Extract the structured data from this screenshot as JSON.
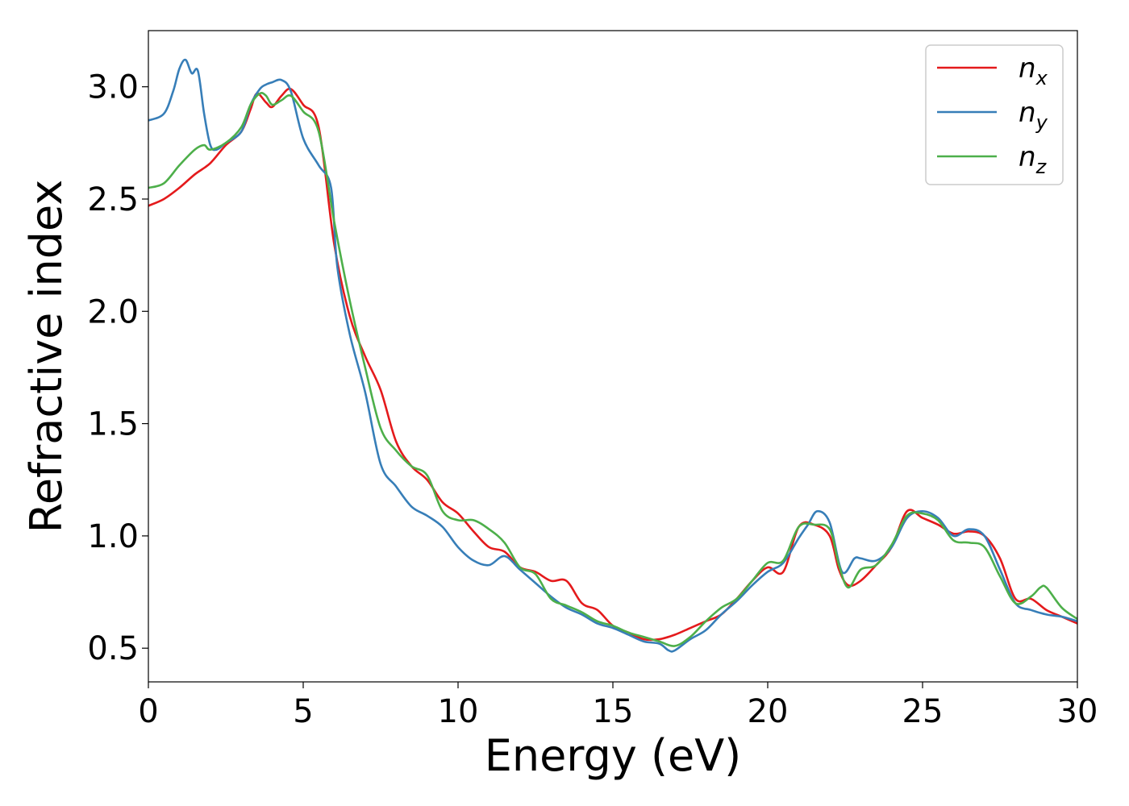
{
  "chart_data": {
    "type": "line",
    "xlabel": "Energy (eV)",
    "ylabel": "Refractive index",
    "xlim": [
      0,
      30
    ],
    "ylim": [
      0.35,
      3.25
    ],
    "xticks": [
      0,
      5,
      10,
      15,
      20,
      25,
      30
    ],
    "yticks": [
      0.5,
      1.0,
      1.5,
      2.0,
      2.5,
      3.0
    ],
    "xtick_labels": [
      "0",
      "5",
      "10",
      "15",
      "20",
      "25",
      "30"
    ],
    "ytick_labels": [
      "0.5",
      "1.0",
      "1.5",
      "2.0",
      "2.5",
      "3.0"
    ],
    "grid": false,
    "legend_position": "top-right",
    "series": [
      {
        "name": "n",
        "subscript": "x",
        "color": "#e41a1c",
        "x": [
          0,
          0.5,
          1.0,
          1.5,
          2.0,
          2.5,
          3.0,
          3.3,
          3.5,
          3.8,
          4.0,
          4.3,
          4.6,
          5.0,
          5.5,
          6.0,
          6.5,
          7.0,
          7.5,
          8.0,
          8.5,
          9.0,
          9.5,
          10.0,
          10.5,
          11.0,
          11.5,
          12.0,
          12.5,
          13.0,
          13.5,
          14.0,
          14.5,
          15.0,
          15.5,
          16.0,
          16.5,
          17.0,
          17.5,
          18.0,
          18.5,
          19.0,
          19.5,
          20.0,
          20.5,
          21.0,
          21.5,
          22.0,
          22.3,
          22.6,
          23.0,
          23.5,
          24.0,
          24.5,
          25.0,
          25.5,
          26.0,
          26.5,
          27.0,
          27.5,
          28.0,
          28.5,
          29.0,
          29.5,
          30.0
        ],
        "y": [
          2.47,
          2.5,
          2.55,
          2.61,
          2.66,
          2.74,
          2.8,
          2.9,
          2.97,
          2.93,
          2.91,
          2.96,
          2.99,
          2.92,
          2.82,
          2.3,
          1.98,
          1.8,
          1.65,
          1.42,
          1.31,
          1.25,
          1.15,
          1.1,
          1.02,
          0.95,
          0.93,
          0.86,
          0.84,
          0.8,
          0.8,
          0.7,
          0.67,
          0.6,
          0.57,
          0.54,
          0.54,
          0.56,
          0.59,
          0.62,
          0.65,
          0.72,
          0.8,
          0.86,
          0.84,
          1.04,
          1.05,
          1.0,
          0.85,
          0.78,
          0.8,
          0.87,
          0.95,
          1.11,
          1.08,
          1.05,
          1.01,
          1.02,
          1.0,
          0.9,
          0.72,
          0.72,
          0.67,
          0.64,
          0.61
        ]
      },
      {
        "name": "n",
        "subscript": "y",
        "color": "#377eb8",
        "x": [
          0,
          0.5,
          0.8,
          1.0,
          1.2,
          1.4,
          1.6,
          1.8,
          2.0,
          2.2,
          2.5,
          3.0,
          3.3,
          3.6,
          3.8,
          4.0,
          4.3,
          4.6,
          5.0,
          5.5,
          5.9,
          6.1,
          6.5,
          7.0,
          7.5,
          8.0,
          8.5,
          9.0,
          9.5,
          10.0,
          10.5,
          11.0,
          11.5,
          12.0,
          12.5,
          13.0,
          13.5,
          14.0,
          14.5,
          15.0,
          15.5,
          16.0,
          16.5,
          16.8,
          17.0,
          17.5,
          18.0,
          18.5,
          19.0,
          19.5,
          20.0,
          20.5,
          21.0,
          21.3,
          21.6,
          22.0,
          22.4,
          22.8,
          23.0,
          23.5,
          24.0,
          24.5,
          25.0,
          25.5,
          26.0,
          26.5,
          27.0,
          27.5,
          28.0,
          28.5,
          29.0,
          29.5,
          30.0
        ],
        "y": [
          2.85,
          2.88,
          2.98,
          3.08,
          3.12,
          3.06,
          3.07,
          2.88,
          2.74,
          2.72,
          2.75,
          2.8,
          2.92,
          2.99,
          3.01,
          3.02,
          3.03,
          2.98,
          2.77,
          2.65,
          2.55,
          2.2,
          1.9,
          1.64,
          1.32,
          1.22,
          1.13,
          1.09,
          1.04,
          0.95,
          0.89,
          0.87,
          0.91,
          0.85,
          0.79,
          0.73,
          0.68,
          0.65,
          0.61,
          0.59,
          0.56,
          0.53,
          0.52,
          0.49,
          0.49,
          0.54,
          0.58,
          0.65,
          0.71,
          0.78,
          0.84,
          0.88,
          0.99,
          1.05,
          1.11,
          1.06,
          0.84,
          0.9,
          0.9,
          0.89,
          0.95,
          1.08,
          1.11,
          1.08,
          1.0,
          1.03,
          1.0,
          0.85,
          0.7,
          0.67,
          0.65,
          0.64,
          0.62
        ]
      },
      {
        "name": "n",
        "subscript": "z",
        "color": "#4daf4a",
        "x": [
          0,
          0.5,
          1.0,
          1.5,
          1.8,
          2.0,
          2.5,
          3.0,
          3.3,
          3.6,
          3.8,
          4.0,
          4.3,
          4.6,
          5.0,
          5.5,
          6.0,
          6.5,
          7.0,
          7.5,
          8.0,
          8.5,
          9.0,
          9.5,
          10.0,
          10.5,
          11.0,
          11.5,
          12.0,
          12.5,
          13.0,
          13.5,
          14.0,
          14.5,
          15.0,
          15.5,
          16.0,
          16.5,
          17.0,
          17.5,
          18.0,
          18.5,
          19.0,
          19.5,
          20.0,
          20.5,
          21.0,
          21.5,
          22.0,
          22.3,
          22.6,
          23.0,
          23.5,
          24.0,
          24.5,
          25.0,
          25.5,
          26.0,
          26.5,
          27.0,
          27.5,
          28.0,
          28.5,
          28.8,
          29.0,
          29.5,
          30.0
        ],
        "y": [
          2.55,
          2.57,
          2.65,
          2.72,
          2.74,
          2.72,
          2.75,
          2.82,
          2.92,
          2.97,
          2.96,
          2.92,
          2.94,
          2.96,
          2.89,
          2.8,
          2.4,
          2.05,
          1.75,
          1.48,
          1.38,
          1.31,
          1.27,
          1.11,
          1.07,
          1.07,
          1.03,
          0.97,
          0.86,
          0.83,
          0.72,
          0.69,
          0.66,
          0.62,
          0.6,
          0.57,
          0.55,
          0.53,
          0.51,
          0.55,
          0.62,
          0.68,
          0.72,
          0.8,
          0.88,
          0.89,
          1.04,
          1.05,
          1.03,
          0.87,
          0.77,
          0.85,
          0.87,
          0.96,
          1.09,
          1.1,
          1.07,
          0.98,
          0.97,
          0.95,
          0.82,
          0.7,
          0.73,
          0.77,
          0.77,
          0.68,
          0.63
        ]
      }
    ]
  }
}
